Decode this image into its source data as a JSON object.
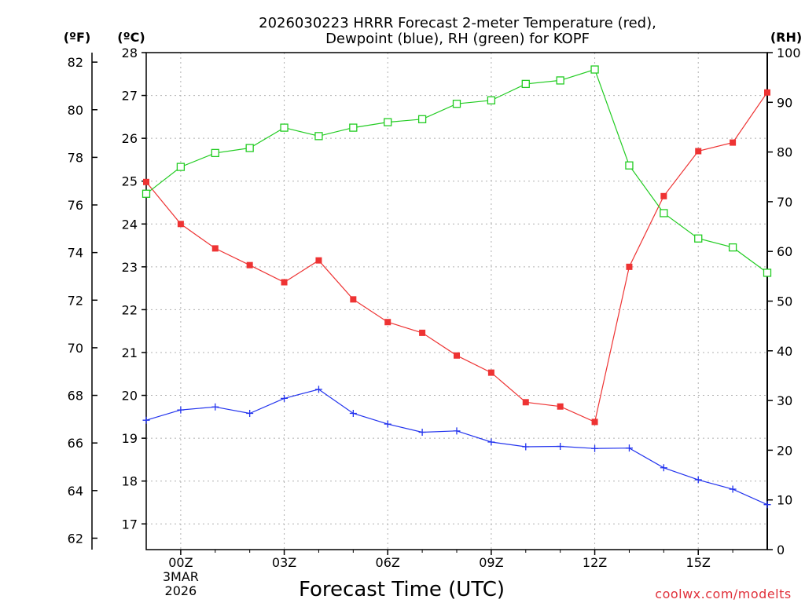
{
  "chart_data": {
    "type": "line",
    "title": [
      "2026030223 HRRR Forecast 2-meter Temperature (red),",
      "Dewpoint (blue), RH (green) for KOPF"
    ],
    "xlabel": "Forecast Time (UTC)",
    "x_hours": [
      -1,
      0,
      1,
      2,
      3,
      4,
      5,
      6,
      7,
      8,
      9,
      10,
      11,
      12,
      13,
      14,
      15,
      16,
      17
    ],
    "x_ticks": [
      {
        "hour": 0,
        "label": "00Z",
        "date_line1": "3MAR",
        "date_line2": "2026"
      },
      {
        "hour": 3,
        "label": "03Z"
      },
      {
        "hour": 6,
        "label": "06Z"
      },
      {
        "hour": 9,
        "label": "09Z"
      },
      {
        "hour": 12,
        "label": "12Z"
      },
      {
        "hour": 15,
        "label": "15Z"
      }
    ],
    "xlim": [
      -1,
      17
    ],
    "axes": {
      "celsius": {
        "unit_label": "(ºC)",
        "ylim": [
          16.4,
          28.0
        ],
        "ticks": [
          17,
          18,
          19,
          20,
          21,
          22,
          23,
          24,
          25,
          26,
          27,
          28
        ]
      },
      "fahrenheit": {
        "unit_label": "(ºF)",
        "ticks": [
          62,
          64,
          66,
          68,
          70,
          72,
          74,
          76,
          78,
          80,
          82
        ]
      },
      "rh": {
        "unit_label": "(RH)",
        "ylim": [
          0,
          100
        ],
        "ticks": [
          0,
          10,
          20,
          30,
          40,
          50,
          60,
          70,
          80,
          90,
          100
        ]
      }
    },
    "series": [
      {
        "name": "Temperature",
        "axis": "celsius",
        "color": "#ee3333",
        "marker": "filled-square",
        "values": [
          24.98,
          24.0,
          23.43,
          23.04,
          22.64,
          23.15,
          22.24,
          21.71,
          21.46,
          20.93,
          20.53,
          19.84,
          19.74,
          19.38,
          23.0,
          24.65,
          25.7,
          25.9,
          27.07
        ]
      },
      {
        "name": "Dewpoint",
        "axis": "celsius",
        "color": "#2233ee",
        "marker": "plus",
        "values": [
          19.42,
          19.66,
          19.73,
          19.58,
          19.93,
          20.14,
          19.58,
          19.33,
          19.14,
          19.17,
          18.91,
          18.8,
          18.81,
          18.76,
          18.77,
          18.31,
          18.03,
          17.81,
          17.45
        ]
      },
      {
        "name": "RH",
        "axis": "rh",
        "color": "#22cc22",
        "marker": "open-square",
        "values": [
          71.6,
          77.0,
          79.8,
          80.8,
          84.9,
          83.2,
          84.9,
          86.0,
          86.6,
          89.7,
          90.4,
          93.7,
          94.4,
          96.6,
          77.3,
          67.7,
          62.6,
          60.8,
          55.7
        ]
      }
    ],
    "credit": "coolwx.com/modelts",
    "grid": true
  }
}
